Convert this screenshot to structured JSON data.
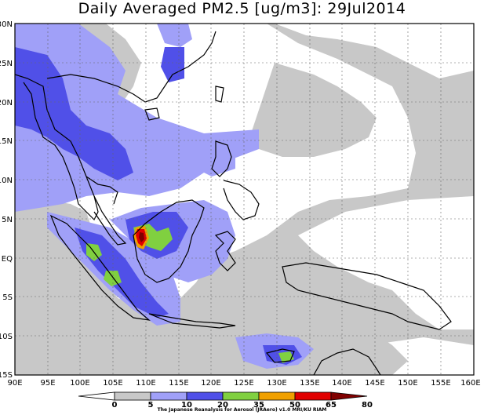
{
  "title": "Daily Averaged PM2.5 [ug/m3]: 29Jul2014",
  "credit": "The Japanese Reanalysis for Aerosol (JRAero) v1.0 MRI/KU RIAM",
  "map": {
    "lon_labels": [
      "90E",
      "95E",
      "100E",
      "105E",
      "110E",
      "115E",
      "120E",
      "125E",
      "130E",
      "135E",
      "140E",
      "145E",
      "150E",
      "155E",
      "160E"
    ],
    "lat_labels": [
      "30N",
      "25N",
      "20N",
      "15N",
      "10N",
      "5N",
      "EQ",
      "5S",
      "10S",
      "15S"
    ],
    "lon_range": [
      90,
      160
    ],
    "lat_range": [
      -15,
      30
    ],
    "grid": true
  },
  "colorbar": {
    "levels": [
      "0",
      "5",
      "10",
      "20",
      "35",
      "50",
      "65",
      "80"
    ],
    "colors": {
      "c0_5": "#ffffff",
      "c5_10": "#c8c8c8",
      "c10_20": "#a0a0f8",
      "c20_35": "#5050e8",
      "c35_50": "#80d040",
      "c50_65": "#f0a000",
      "c65_80": "#e00000",
      "c80p": "#800000"
    }
  }
}
